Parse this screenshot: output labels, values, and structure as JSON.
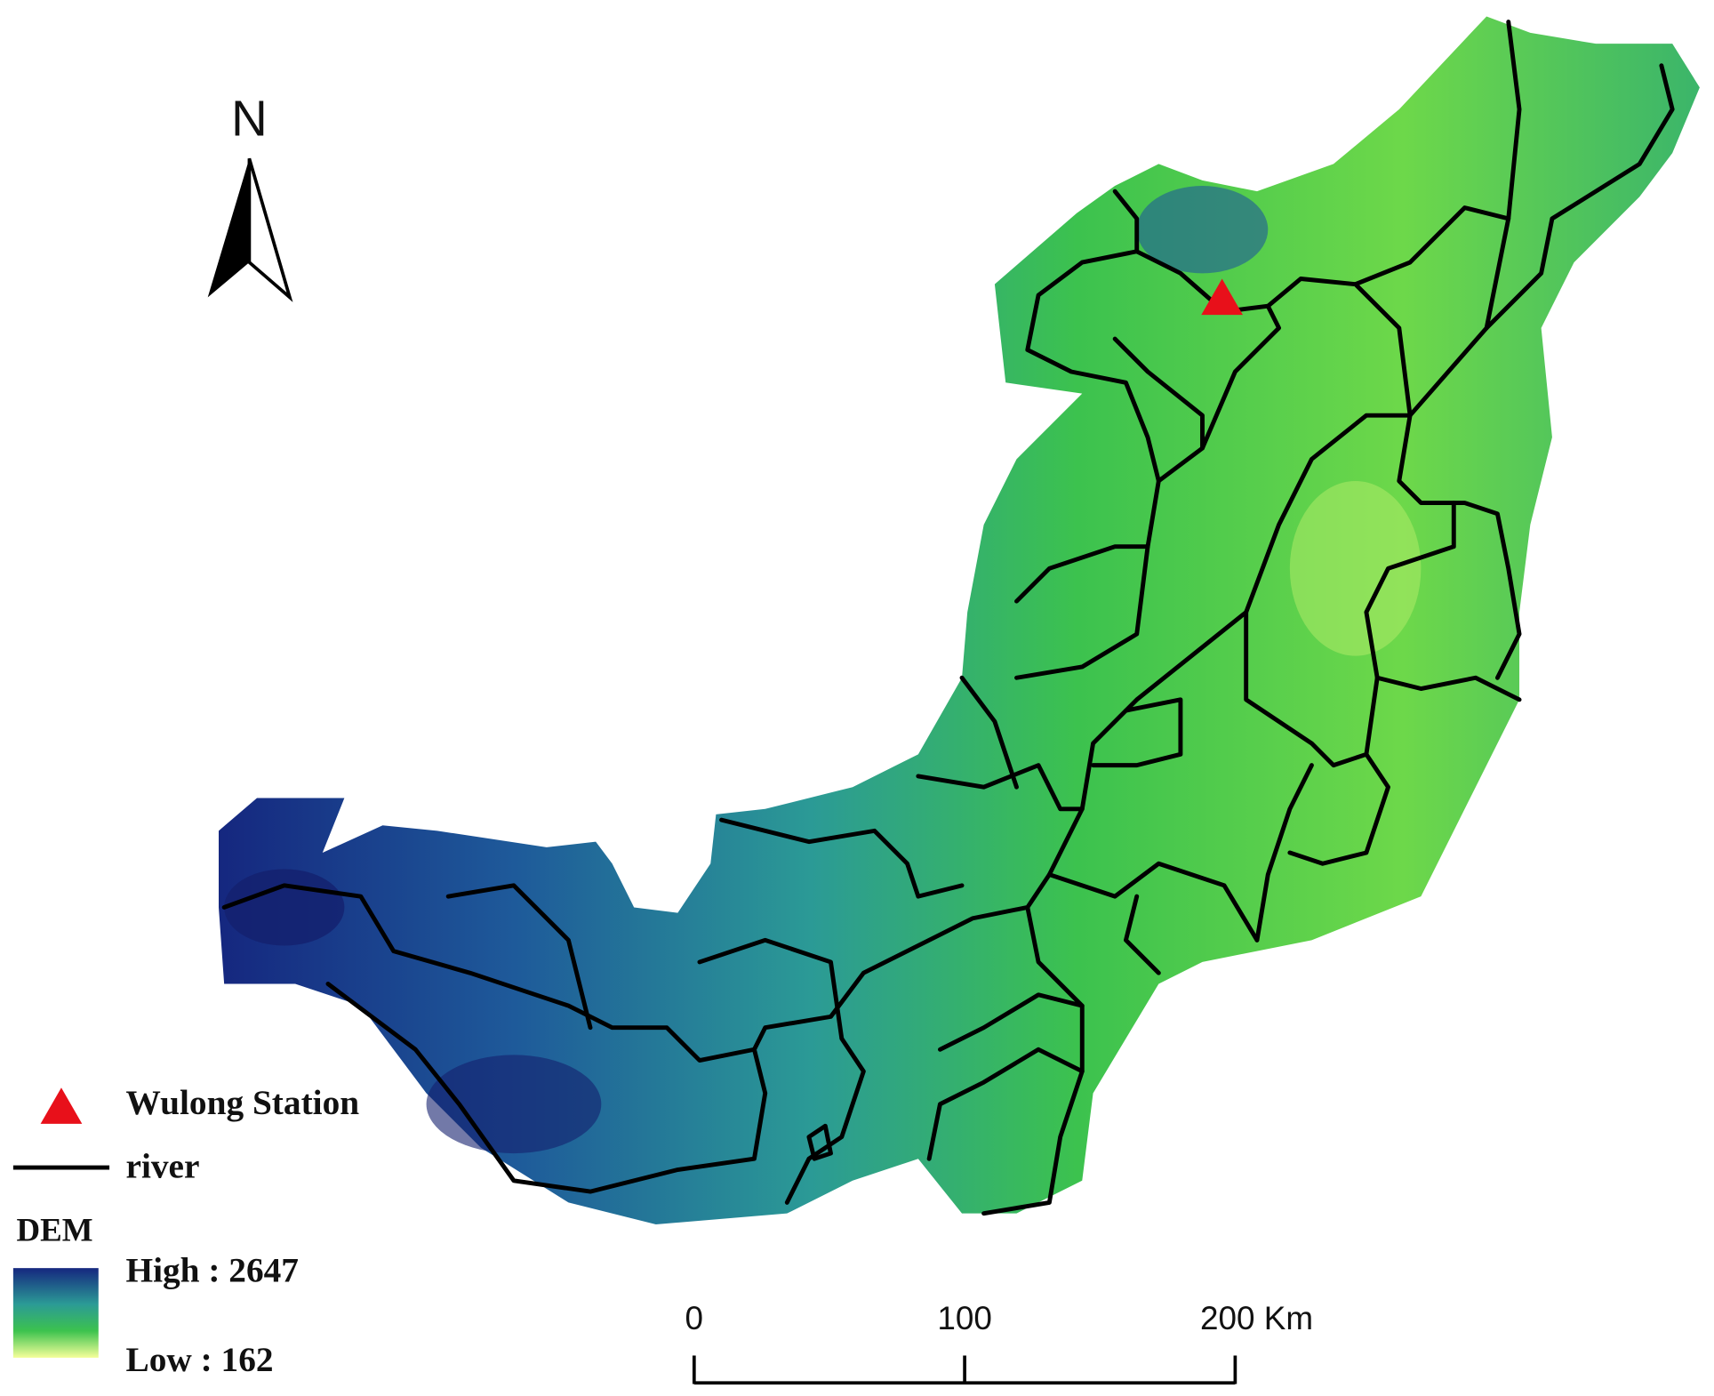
{
  "north_arrow": {
    "label": "N"
  },
  "legend": {
    "station": "Wulong Station",
    "river": "river",
    "dem_title": "DEM",
    "high": "High : 2647",
    "low": "Low : 162"
  },
  "scale_bar": {
    "ticks": [
      0,
      100,
      {
        "value": 200,
        "label": "200 Km"
      }
    ]
  }
}
